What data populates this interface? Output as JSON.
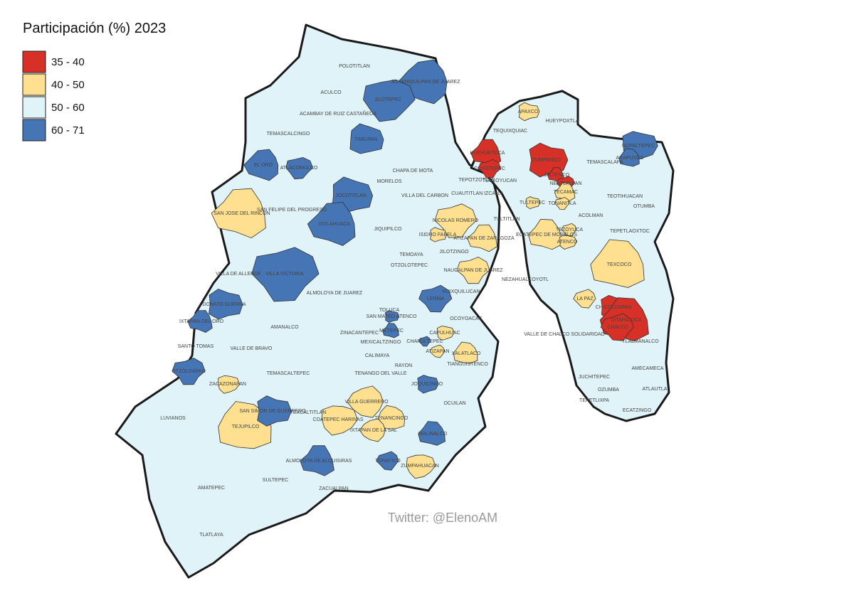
{
  "title": "Participación (%) 2023",
  "credit": "Twitter: @ElenoAM",
  "legend": [
    {
      "label": "35 - 40",
      "color": "#d73027",
      "municipalities": [
        "HUEHUETOCA",
        "COYOTEPEC",
        "ZUMPANGO",
        "JALTENCO",
        "NEXTLALPAN",
        "CHICOLOAPAN",
        "IXTAPALUCA",
        "CHALCO"
      ]
    },
    {
      "label": "40 - 50",
      "color": "#fee090",
      "municipalities": [
        "SAN JOSE DEL RINCON",
        "NICOLAS ROMERO",
        "ISIDRO FABELA",
        "ATIZAPAN DE ZARAGOZA",
        "NAUCALPAN DE JUAREZ",
        "APAXCO",
        "TECAMAC",
        "TONANITLA",
        "TULTEPEC",
        "ECATEPEC DE MORELOS",
        "TEZOYUCA",
        "ATENCO",
        "TEXCOCO",
        "LA PAZ",
        "CAPULHUAC",
        "XALATLACO",
        "ATIZAPAN",
        "ZACAZONAPAN",
        "TEJUPILCO",
        "VILLA GUERRERO",
        "COATEPEC HARINAS",
        "TENANCINGO",
        "IXTAPAN DE LA SAL",
        "ZUMPAHUACAN"
      ]
    },
    {
      "label": "50 - 60",
      "color": "#e0f3f8",
      "municipalities": [
        "POLOTITLAN",
        "ACULCO",
        "ACAMBAY DE RUIZ CASTAÑEDA",
        "TEMASCALCINGO",
        "CHAPA DE MOTA",
        "MORELOS",
        "VILLA DEL CARBON",
        "SAN FELIPE DEL PROGRESO",
        "JIQUIPILCO",
        "TEMOAYA",
        "OTZOLOTEPEC",
        "JILOTZINGO",
        "VILLA DE ALLENDE",
        "ALMOLOYA DE JUAREZ",
        "TOLUCA",
        "ZINACANTEPEC",
        "AMANALCO",
        "VALLE DE BRAVO",
        "SANTO TOMAS",
        "TEMASCALTEPEC",
        "MEXICALTZINGO",
        "CALIMAYA",
        "TENANGO DEL VALLE",
        "RAYON",
        "TEXCALTITLAN",
        "LUVIANOS",
        "AMATEPEC",
        "TLATLAYA",
        "SULTEPEC",
        "ZACUALPAN",
        "OCUILAN",
        "TIANGUISTENCO",
        "OCOYOACAC",
        "HUIXQUILUCAN",
        "TEPOTZOTLAN",
        "CUAUTITLAN IZCALLI",
        "TEOLOYUCAN",
        "TULTITLAN",
        "TEQUIXQUIAC",
        "HUEYPOXTLA",
        "TEMASCALAPA",
        "TEOTIHUACAN",
        "ACOLMAN",
        "OTUMBA",
        "TEPETLAOXTOC",
        "NEZAHUALCOYOTL",
        "VALLE DE CHALCO SOLIDARIDAD",
        "TLALMANALCO",
        "JUCHITEPEC",
        "AMECAMECA",
        "OZUMBA",
        "ATLAUTLA",
        "TEPETLIXPA",
        "ECATZINGO"
      ]
    },
    {
      "label": "60 - 71",
      "color": "#4575b4",
      "municipalities": [
        "SOYANIQUILPAN DE JUAREZ",
        "JILOTEPEC",
        "TIMILPAN",
        "EL ORO",
        "ATLACOMULCO",
        "JOCOTITLAN",
        "IXTLAHUACA",
        "VILLA VICTORIA",
        "DONATO GUERRA",
        "IXTAPAN DEL ORO",
        "OTZOLOAPAN",
        "SAN SIMON DE GUERRERO",
        "ALMOLOYA DE ALQUISIRAS",
        "LERMA",
        "SAN MATEO ATENCO",
        "METEPEC",
        "CHAPULTEPEC",
        "JOQUICINGO",
        "MALINALCO",
        "TONATICO",
        "NOPALTEPEC",
        "AXAPUSCO"
      ]
    }
  ]
}
